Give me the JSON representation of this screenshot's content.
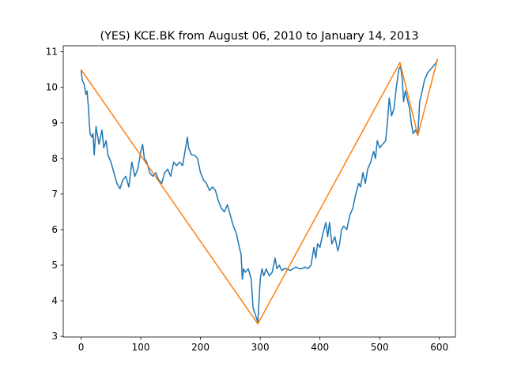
{
  "chart_data": {
    "type": "line",
    "title": "(YES) KCE.BK from August 06, 2010 to January 14, 2013",
    "xlim": [
      -29.85,
      626.85
    ],
    "ylim": [
      2.98,
      11.17
    ],
    "xticks": [
      0,
      100,
      200,
      300,
      400,
      500,
      600
    ],
    "yticks": [
      3,
      4,
      5,
      6,
      7,
      8,
      9,
      10,
      11
    ],
    "series": [
      {
        "color": "#1f77b4",
        "x": [
          0,
          2,
          5,
          8,
          10,
          12,
          15,
          18,
          20,
          22,
          25,
          28,
          30,
          35,
          38,
          42,
          45,
          50,
          55,
          60,
          65,
          70,
          75,
          80,
          85,
          90,
          95,
          100,
          103,
          106,
          110,
          115,
          120,
          125,
          130,
          135,
          140,
          145,
          150,
          155,
          160,
          165,
          170,
          175,
          178,
          180,
          185,
          190,
          195,
          200,
          205,
          210,
          215,
          220,
          225,
          230,
          235,
          240,
          245,
          250,
          255,
          260,
          265,
          268,
          270,
          272,
          275,
          280,
          285,
          288,
          292,
          296,
          300,
          303,
          306,
          310,
          315,
          320,
          325,
          328,
          332,
          336,
          340,
          345,
          350,
          355,
          360,
          365,
          370,
          375,
          380,
          385,
          390,
          393,
          396,
          400,
          405,
          410,
          413,
          416,
          420,
          425,
          430,
          433,
          436,
          440,
          445,
          450,
          455,
          460,
          465,
          468,
          472,
          476,
          480,
          485,
          490,
          493,
          496,
          500,
          505,
          510,
          513,
          516,
          520,
          524,
          528,
          532,
          535,
          538,
          540,
          543,
          546,
          550,
          553,
          556,
          560,
          564,
          567,
          570,
          575,
          580,
          585,
          590,
          595,
          597
        ],
        "values": [
          10.5,
          10.2,
          10.1,
          9.8,
          9.9,
          9.5,
          8.7,
          8.6,
          8.7,
          8.1,
          8.9,
          8.6,
          8.4,
          8.8,
          8.3,
          8.5,
          8.1,
          7.9,
          7.6,
          7.3,
          7.15,
          7.4,
          7.5,
          7.2,
          7.9,
          7.5,
          7.7,
          8.2,
          8.4,
          8.0,
          7.9,
          7.6,
          7.5,
          7.6,
          7.4,
          7.3,
          7.6,
          7.7,
          7.5,
          7.9,
          7.8,
          7.9,
          7.8,
          8.3,
          8.6,
          8.3,
          8.1,
          8.1,
          8.0,
          7.6,
          7.4,
          7.3,
          7.1,
          7.2,
          7.1,
          6.8,
          6.6,
          6.5,
          6.7,
          6.4,
          6.1,
          5.9,
          5.5,
          5.3,
          4.6,
          4.9,
          4.8,
          4.9,
          4.6,
          3.8,
          3.6,
          3.4,
          4.6,
          4.9,
          4.7,
          4.9,
          4.7,
          4.8,
          5.2,
          4.9,
          5.0,
          4.85,
          4.9,
          4.9,
          4.85,
          4.9,
          4.95,
          4.9,
          4.9,
          4.95,
          4.9,
          5.0,
          5.5,
          5.2,
          5.6,
          5.5,
          5.9,
          6.2,
          5.8,
          6.2,
          5.6,
          5.8,
          5.4,
          5.6,
          6.0,
          6.1,
          6.0,
          6.4,
          6.6,
          7.0,
          7.3,
          7.2,
          7.6,
          7.3,
          7.7,
          7.9,
          8.2,
          8.0,
          8.5,
          8.3,
          8.4,
          8.5,
          9.0,
          9.7,
          9.2,
          9.4,
          10.0,
          10.5,
          10.6,
          10.2,
          9.6,
          9.9,
          9.7,
          9.4,
          9.0,
          8.7,
          8.8,
          8.65,
          9.6,
          9.8,
          10.2,
          10.4,
          10.5,
          10.6,
          10.7,
          10.8
        ]
      },
      {
        "color": "#ff7f0e",
        "x": [
          0,
          296,
          534,
          564,
          597
        ],
        "values": [
          10.5,
          3.35,
          10.7,
          8.65,
          10.8
        ]
      }
    ]
  }
}
